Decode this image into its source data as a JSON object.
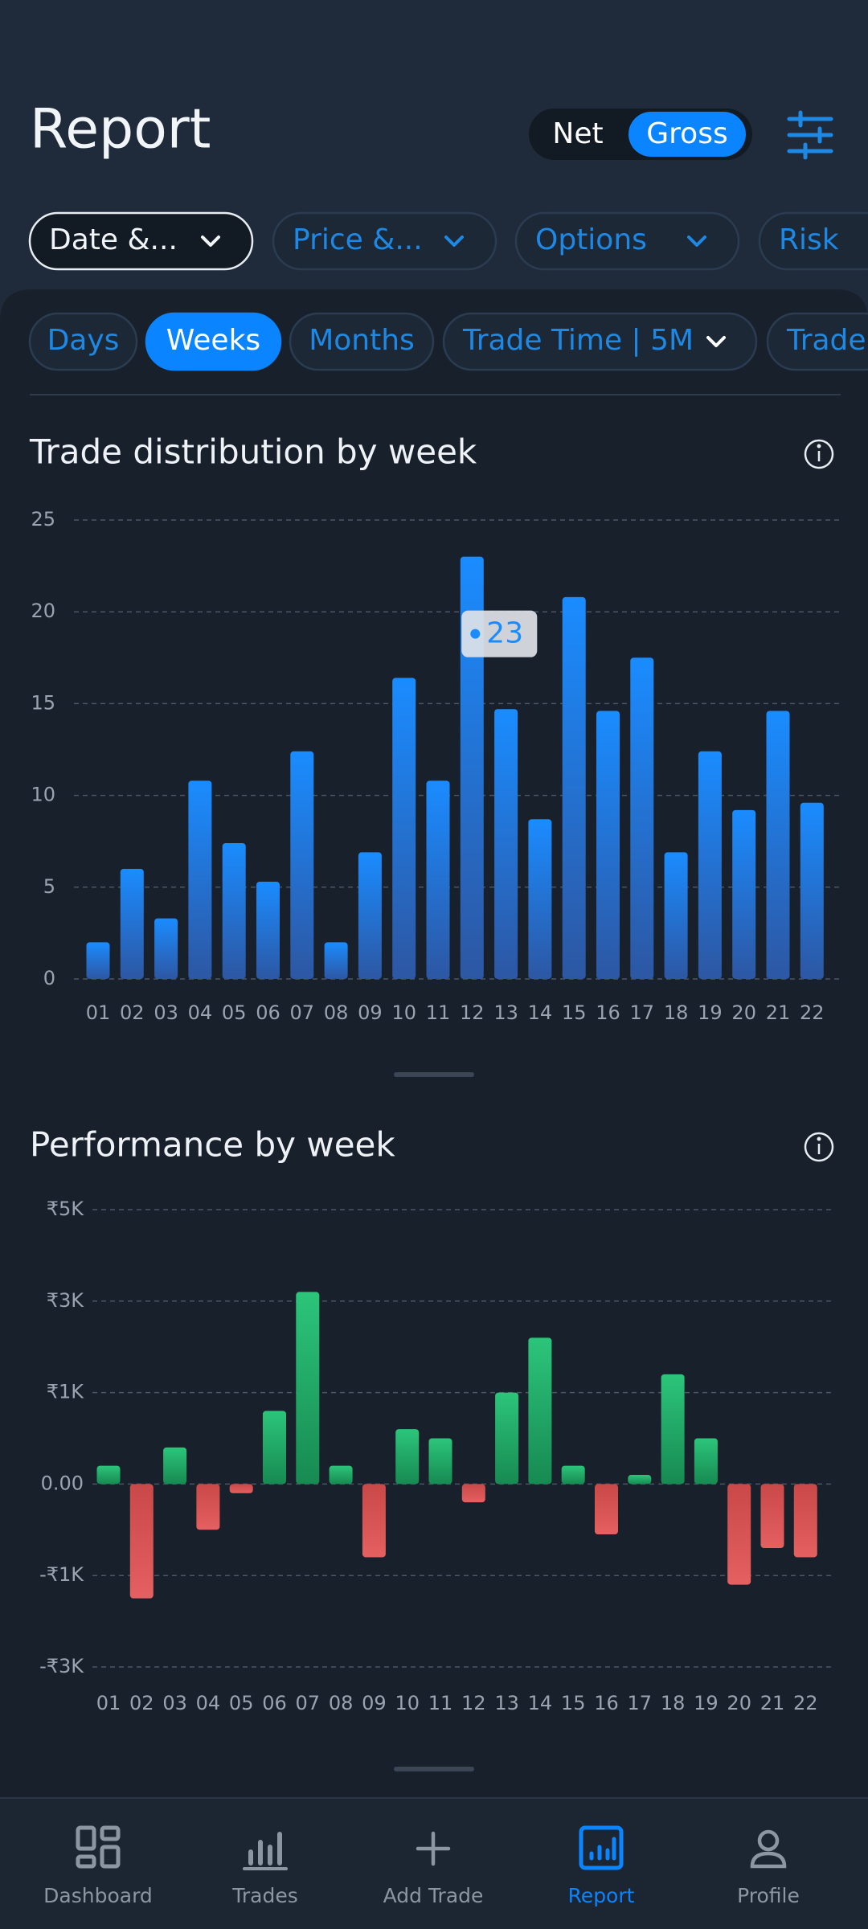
{
  "header": {
    "title": "Report",
    "toggle": [
      "Net",
      "Gross"
    ],
    "toggle_selected": 1
  },
  "filters": [
    "Date &...",
    "Price &...",
    "Options",
    "Risk"
  ],
  "filter_selected": 0,
  "tabs": [
    "Days",
    "Weeks",
    "Months",
    "Trade Time | 5M",
    "Trade"
  ],
  "tab_selected": 1,
  "chart_data": [
    {
      "type": "bar",
      "title": "Trade distribution by week",
      "categories": [
        "01",
        "02",
        "03",
        "04",
        "05",
        "06",
        "07",
        "08",
        "09",
        "10",
        "11",
        "12",
        "13",
        "14",
        "15",
        "16",
        "17",
        "18",
        "19",
        "20",
        "21",
        "22"
      ],
      "values": [
        2,
        6,
        3.3,
        10.8,
        7.4,
        5.3,
        12.4,
        2,
        6.9,
        16.4,
        10.8,
        23,
        14.7,
        8.7,
        20.8,
        14.6,
        17.5,
        6.9,
        12.4,
        9.2,
        14.6,
        9.6
      ],
      "color": "#1a8cff",
      "ylim": [
        0,
        25
      ],
      "yticks": [
        0,
        5,
        10,
        15,
        20,
        25
      ],
      "grid": true,
      "tooltip_index": 11
    },
    {
      "type": "bar",
      "title": "Performance by week",
      "categories": [
        "01",
        "02",
        "03",
        "04",
        "05",
        "06",
        "07",
        "08",
        "09",
        "10",
        "11",
        "12",
        "13",
        "14",
        "15",
        "16",
        "17",
        "18",
        "19",
        "20",
        "21",
        "22"
      ],
      "values": [
        200,
        -1500,
        400,
        -500,
        -100,
        800,
        3200,
        200,
        -800,
        600,
        500,
        -200,
        1000,
        2200,
        200,
        -550,
        100,
        1400,
        500,
        -1200,
        -700,
        -800
      ],
      "positive_color": "#22b36a",
      "negative_color": "#e05555",
      "ylim": [
        -3000,
        5000
      ],
      "yticks": [
        {
          "value": -3000,
          "label": "-₹3K"
        },
        {
          "value": -1000,
          "label": "-₹1K"
        },
        {
          "value": 0,
          "label": "0.00"
        },
        {
          "value": 1000,
          "label": "₹1K"
        },
        {
          "value": 3000,
          "label": "₹3K"
        },
        {
          "value": 5000,
          "label": "₹5K"
        }
      ],
      "grid": true
    }
  ],
  "nav": [
    "Dashboard",
    "Trades",
    "Add Trade",
    "Report",
    "Profile"
  ],
  "nav_selected": 3
}
